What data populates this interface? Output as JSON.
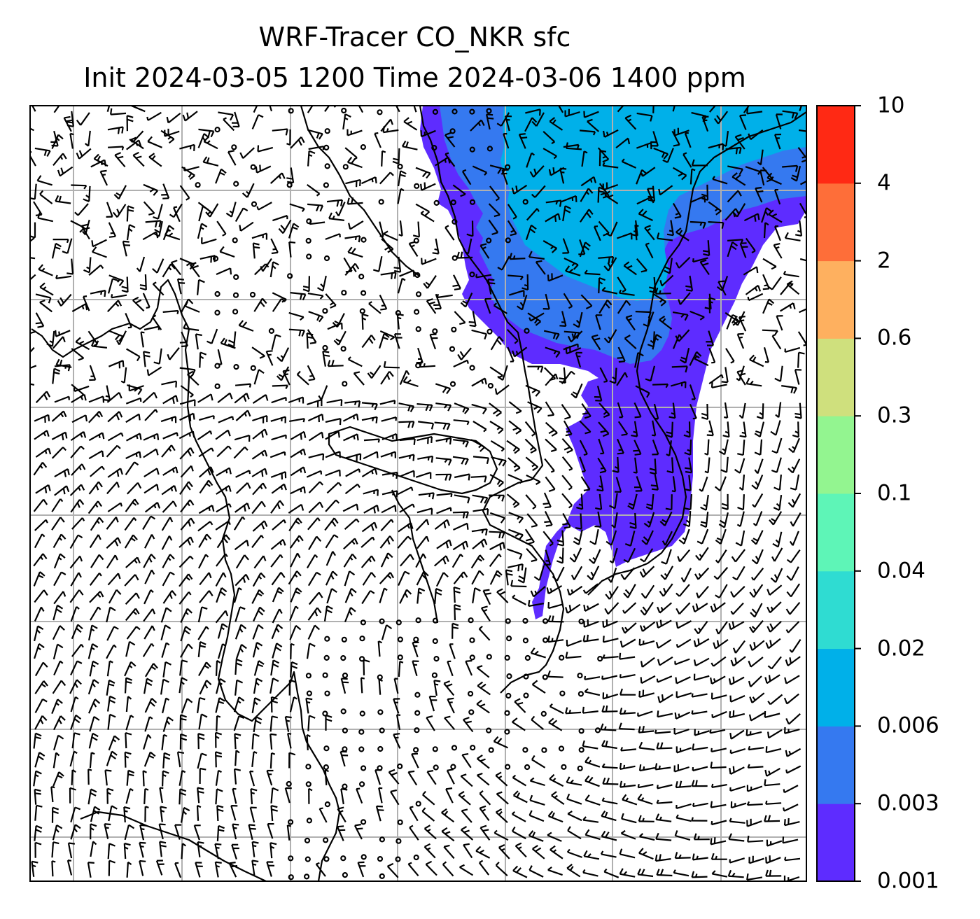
{
  "title": {
    "line1": "WRF-Tracer CO_NKR sfc",
    "line2": "Init 2024-03-05 1200 Time 2024-03-06 1400 ppm"
  },
  "colorbar": {
    "levels": [
      "0.001",
      "0.003",
      "0.006",
      "0.02",
      "0.04",
      "0.1",
      "0.3",
      "0.6",
      "2",
      "4",
      "10"
    ],
    "colors": [
      "#5e2cff",
      "#3579f0",
      "#00b0e9",
      "#2fdcd2",
      "#5ef5b7",
      "#93f590",
      "#cfe07d",
      "#feb05f",
      "#fe6e39",
      "#ff2914"
    ]
  },
  "map": {
    "plume_colors": {
      "outer": "#5e2cff",
      "middle": "#3579f0",
      "inner": "#00b0e9"
    },
    "gridline_color": "#b0b0b0",
    "coastline_color": "#000000",
    "wind_barb_color": "#000000"
  }
}
